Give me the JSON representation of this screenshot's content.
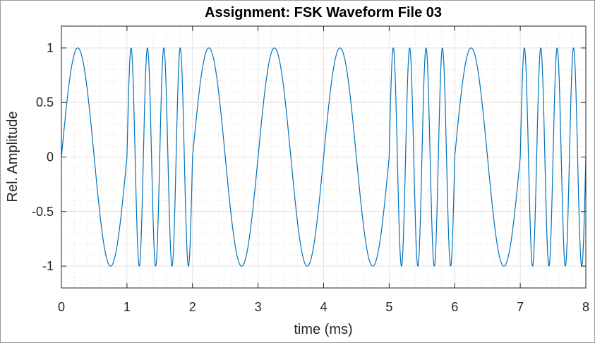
{
  "chart_data": {
    "type": "line",
    "title": "Assignment: FSK Waveform File 03",
    "xlabel": "time (ms)",
    "ylabel": "Rel. Amplitude",
    "xlim": [
      0,
      8
    ],
    "ylim": [
      -1.2,
      1.2
    ],
    "xticks": [
      0,
      1,
      2,
      3,
      4,
      5,
      6,
      7,
      8
    ],
    "xtick_labels": [
      "0",
      "1",
      "2",
      "3",
      "4",
      "5",
      "6",
      "7",
      "8"
    ],
    "yticks": [
      1,
      0.5,
      0,
      -0.5,
      -1
    ],
    "ytick_labels": [
      "1",
      "0.5",
      "0",
      "-0.5",
      "-1"
    ],
    "grid": "major and minor",
    "series": [
      {
        "color": "#0072bd",
        "function": "sin(2*pi*f*t), continuous phase",
        "bit_duration_ms": 1,
        "bits": [
          0,
          1,
          0,
          0,
          0,
          1,
          0,
          1
        ],
        "frequency_khz_for_bit": {
          "0": 1,
          "1": 4
        }
      }
    ]
  }
}
